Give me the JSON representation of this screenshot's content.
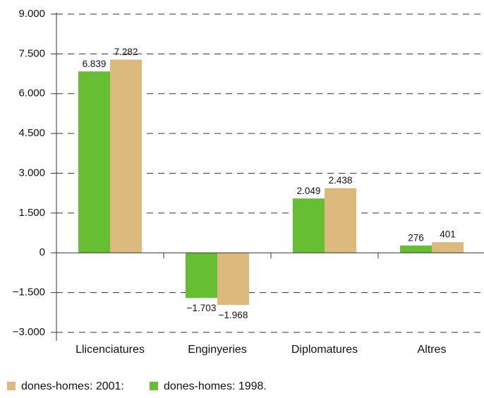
{
  "chart_data": {
    "type": "bar",
    "categories": [
      "Llicenciatures",
      "Enginyeries",
      "Diplomatures",
      "Altres"
    ],
    "series": [
      {
        "name": "dones-homes: 1998.",
        "color": "#66bf33",
        "values": [
          6839,
          -1703,
          2049,
          276
        ],
        "value_labels": [
          "6.839",
          "−1.703",
          "2.049",
          "276"
        ]
      },
      {
        "name": "dones-homes: 2001:",
        "color": "#dcb97c",
        "values": [
          7282,
          -1968,
          2438,
          401
        ],
        "value_labels": [
          "7.282",
          "−1.968",
          "2.438",
          "401"
        ]
      }
    ],
    "ylim": [
      -3000,
      9000
    ],
    "yticks": [
      {
        "value": -3000,
        "label": "−3.000"
      },
      {
        "value": -1500,
        "label": "−1.500"
      },
      0,
      {
        "value": 1500,
        "label": "1.500"
      },
      {
        "value": 3000,
        "label": "3.000"
      },
      {
        "value": 4500,
        "label": "4.500"
      },
      {
        "value": 6000,
        "label": "6.000"
      },
      {
        "value": 7500,
        "label": "7.500"
      },
      {
        "value": 9000,
        "label": "9.000"
      }
    ],
    "grid": true
  }
}
